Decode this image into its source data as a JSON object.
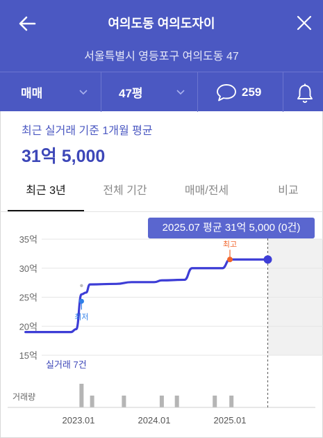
{
  "header": {
    "title": "여의도동 여의도자이",
    "address": "서울특별시 영등포구 여의도동 47"
  },
  "filters": {
    "trade_type": "매매",
    "area": "47평",
    "comment_count": "259"
  },
  "summary": {
    "subtitle": "최근 실거래 기준 1개월 평균",
    "price": "31억 5,000"
  },
  "tabs": [
    {
      "label": "최근 3년",
      "active": true
    },
    {
      "label": "전체 기간",
      "active": false
    },
    {
      "label": "매매/전세",
      "active": false
    },
    {
      "label": "비교",
      "active": false
    }
  ],
  "tooltip": "2025.07 평균 31억 5,000 (0건)",
  "colors": {
    "brand": "#4b58c2",
    "line": "#3d3dd6",
    "max_marker": "#f0632a",
    "min_marker": "#2f7fe8",
    "volume_bar": "#b5b5b5"
  },
  "chart_data": {
    "type": "line",
    "y_unit": "억",
    "ylim": [
      15,
      35
    ],
    "y_ticks": [
      {
        "value": 35,
        "label": "35억"
      },
      {
        "value": 30,
        "label": "30억"
      },
      {
        "value": 25,
        "label": "25억"
      },
      {
        "value": 20,
        "label": "20억"
      },
      {
        "value": 15,
        "label": "15억"
      }
    ],
    "x_tick_labels": [
      "2023.01",
      "2024.01",
      "2025.01"
    ],
    "x_tick_months": [
      2023.0,
      2024.0,
      2025.0
    ],
    "series": [
      {
        "points": [
          {
            "x": 2022.3,
            "y": 19
          },
          {
            "x": 2022.9,
            "y": 19
          },
          {
            "x": 2022.97,
            "y": 19.5
          },
          {
            "x": 2023.04,
            "y": 25.5
          },
          {
            "x": 2023.1,
            "y": 25.8
          },
          {
            "x": 2023.15,
            "y": 27.2
          },
          {
            "x": 2023.5,
            "y": 27.3
          },
          {
            "x": 2023.7,
            "y": 27.6
          },
          {
            "x": 2024.0,
            "y": 27.6
          },
          {
            "x": 2024.1,
            "y": 27.9
          },
          {
            "x": 2024.4,
            "y": 28
          },
          {
            "x": 2024.5,
            "y": 30
          },
          {
            "x": 2024.9,
            "y": 30
          },
          {
            "x": 2025.0,
            "y": 31.5
          },
          {
            "x": 2025.5,
            "y": 31.5
          }
        ]
      }
    ],
    "annotations": [
      {
        "label": "최고",
        "x": 2025.0,
        "y": 31.5
      },
      {
        "label": "최저",
        "x": 2023.04,
        "y": 24.3
      }
    ],
    "outlier_point": {
      "x": 2023.04,
      "y": 27
    },
    "current_point": {
      "x": 2025.5,
      "y": 31.5
    },
    "transactions_label": "실거래 7건",
    "volume_label": "거래량",
    "volume": [
      {
        "x": 2023.04,
        "value": 4
      },
      {
        "x": 2023.18,
        "value": 2
      },
      {
        "x": 2023.6,
        "value": 2
      },
      {
        "x": 2024.1,
        "value": 2
      },
      {
        "x": 2024.3,
        "value": 2
      },
      {
        "x": 2024.8,
        "value": 2
      },
      {
        "x": 2025.02,
        "value": 2
      }
    ]
  }
}
